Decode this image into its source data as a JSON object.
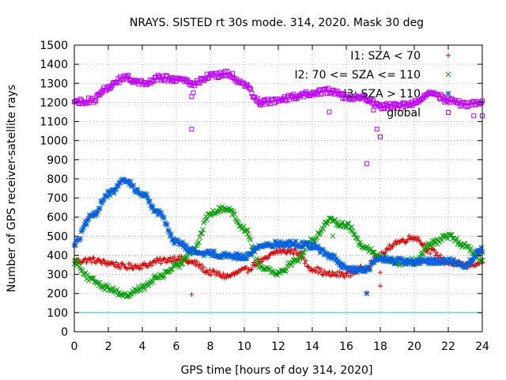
{
  "chart_data": {
    "type": "scatter",
    "title": "NRAYS. SISTED rt 30s mode. 314, 2020. Mask 30 deg",
    "xlabel": "GPS time [hours of doy 314, 2020]",
    "ylabel": "Number of GPS receiver-satellite rays",
    "xlim": [
      0,
      24
    ],
    "ylim": [
      0,
      1500
    ],
    "x_ticks": [
      0,
      2,
      4,
      6,
      8,
      10,
      12,
      14,
      16,
      18,
      20,
      22,
      24
    ],
    "x_tick_labels": [
      "0",
      "2",
      "4",
      "6",
      "8",
      "10",
      "12",
      "14",
      "16",
      "18",
      "20",
      "22",
      "24"
    ],
    "y_ticks": [
      0,
      100,
      200,
      300,
      400,
      500,
      600,
      700,
      800,
      900,
      1000,
      1100,
      1200,
      1300,
      1400,
      1500
    ],
    "y_tick_labels": [
      "0",
      "100",
      "200",
      "300",
      "400",
      "500",
      "600",
      "700",
      "800",
      "900",
      "1000",
      "1100",
      "1200",
      "1300",
      "1400",
      "1500"
    ],
    "grid": true,
    "legend_position": "top-right",
    "reference_line": {
      "y": 100,
      "color": "#00d0d0"
    },
    "series": [
      {
        "name": "I1: SZA < 70",
        "marker": "plus",
        "color": "#e00000",
        "x": [
          0,
          1,
          2,
          3,
          4,
          5,
          6,
          7,
          8,
          9,
          10,
          11,
          12,
          13,
          14,
          15,
          16,
          17,
          18,
          19,
          20,
          21,
          22,
          23,
          24
        ],
        "y": [
          370,
          375,
          360,
          340,
          345,
          370,
          385,
          360,
          310,
          290,
          320,
          370,
          420,
          420,
          330,
          300,
          300,
          330,
          400,
          470,
          495,
          420,
          360,
          350,
          360
        ],
        "outliers": [
          [
            6.9,
            195
          ],
          [
            18,
            240
          ],
          [
            18,
            310
          ],
          [
            17.2,
            205
          ]
        ]
      },
      {
        "name": "I2: 70 <= SZA <= 110",
        "marker": "cross",
        "color": "#00a000",
        "x": [
          0,
          1,
          2,
          3,
          4,
          5,
          6,
          7,
          8,
          9,
          10,
          11,
          12,
          13,
          14,
          15,
          16,
          17,
          18,
          19,
          20,
          21,
          22,
          23,
          24
        ],
        "y": [
          370,
          270,
          230,
          190,
          230,
          290,
          340,
          430,
          620,
          650,
          540,
          340,
          310,
          370,
          480,
          580,
          560,
          450,
          390,
          360,
          370,
          460,
          500,
          450,
          380
        ],
        "outliers": [
          [
            10.2,
            510
          ],
          [
            15.2,
            500
          ]
        ]
      },
      {
        "name": "I3: SZA > 110",
        "marker": "star",
        "color": "#0060e0",
        "x": [
          0,
          1,
          2,
          3,
          4,
          5,
          6,
          7,
          8,
          9,
          10,
          11,
          12,
          13,
          14,
          15,
          16,
          17,
          18,
          19,
          20,
          21,
          22,
          23,
          24
        ],
        "y": [
          460,
          600,
          720,
          790,
          720,
          620,
          470,
          420,
          410,
          400,
          390,
          450,
          460,
          460,
          450,
          400,
          330,
          320,
          380,
          370,
          360,
          370,
          370,
          350,
          430
        ],
        "outliers": [
          [
            17.2,
            200
          ]
        ]
      },
      {
        "name": "global",
        "marker": "square",
        "color": "#c000ff",
        "x": [
          0,
          1,
          2,
          3,
          4,
          5,
          6,
          7,
          8,
          9,
          10,
          11,
          12,
          13,
          14,
          15,
          16,
          17,
          18,
          19,
          20,
          21,
          22,
          23,
          24
        ],
        "y": [
          1200,
          1210,
          1280,
          1330,
          1300,
          1330,
          1320,
          1300,
          1340,
          1350,
          1290,
          1200,
          1210,
          1230,
          1250,
          1260,
          1230,
          1230,
          1180,
          1180,
          1200,
          1260,
          1210,
          1190,
          1200
        ],
        "outliers": [
          [
            6.9,
            1060
          ],
          [
            6.9,
            1230
          ],
          [
            7.0,
            1250
          ],
          [
            15.0,
            1150
          ],
          [
            17.2,
            880
          ],
          [
            17.6,
            1160
          ],
          [
            17.8,
            1060
          ],
          [
            18.0,
            1020
          ],
          [
            23.5,
            1130
          ],
          [
            24,
            1130
          ]
        ]
      }
    ]
  }
}
